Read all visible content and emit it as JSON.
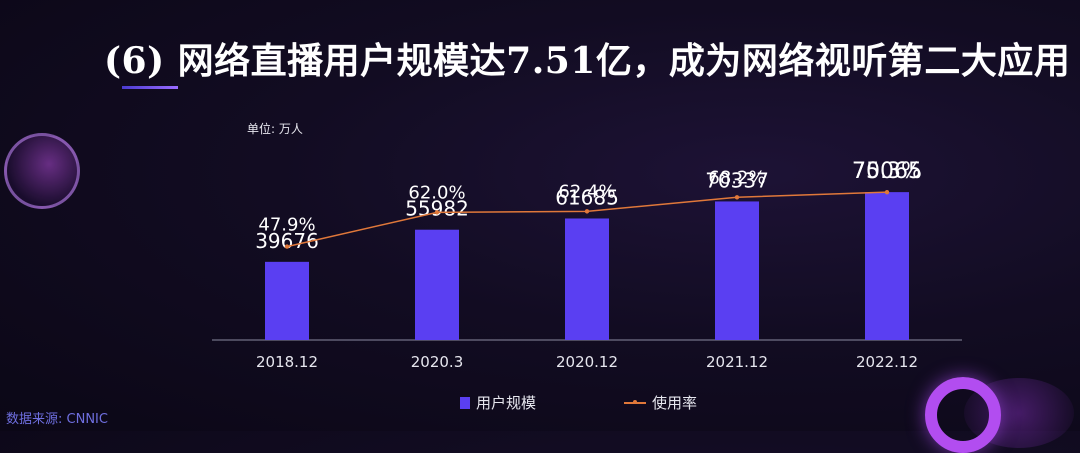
{
  "title": "(6) 网络直播用户规模达7.51亿，成为网络视听第二大应用",
  "unit_label": "单位: 万人",
  "source_label": "数据来源: CNNIC",
  "colors": {
    "bar": "#5a3ff2",
    "line": "#e0783a",
    "background": "#120c22"
  },
  "chart_data": {
    "type": "bar",
    "categories": [
      "2018.12",
      "2020.3",
      "2020.12",
      "2021.12",
      "2022.12"
    ],
    "series": [
      {
        "name": "用户规模",
        "type": "bar",
        "values": [
          39676,
          55982,
          61685,
          70337,
          75065
        ],
        "labels": [
          "39676",
          "55982",
          "61685",
          "70337",
          "75065"
        ]
      },
      {
        "name": "使用率",
        "type": "line",
        "values": [
          47.9,
          62.0,
          62.4,
          68.2,
          70.3
        ],
        "labels": [
          "47.9%",
          "62.0%",
          "62.4%",
          "68.2%",
          "70.3%"
        ]
      }
    ],
    "legend_position": "bottom",
    "grid": false
  },
  "legend": {
    "bar_label": "用户规模",
    "line_label": "使用率"
  }
}
